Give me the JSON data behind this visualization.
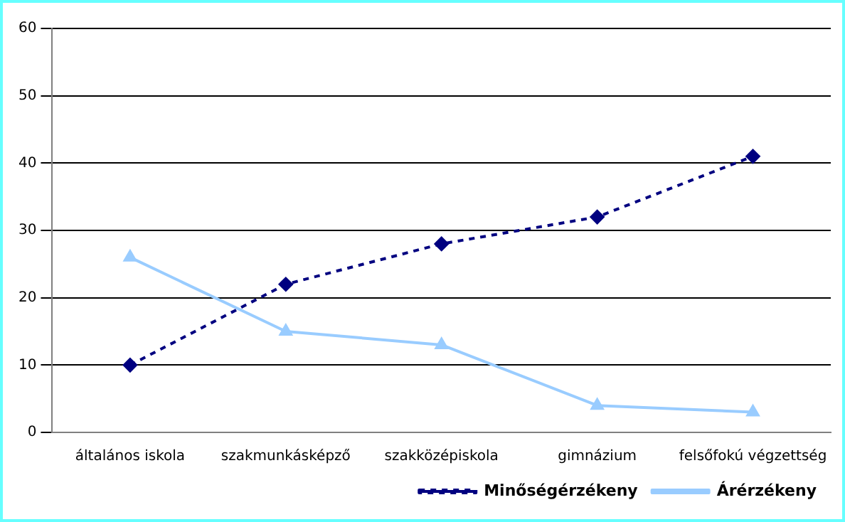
{
  "chart_data": {
    "type": "line",
    "categories": [
      "általános iskola",
      "szakmunkásképző",
      "szakközépiskola",
      "gimnázium",
      "felsőfokú végzettség"
    ],
    "series": [
      {
        "name": "Minőségérzékeny",
        "color": "#000080",
        "values": [
          10,
          22,
          28,
          32,
          41
        ],
        "marker": "diamond",
        "line_style": "dashed"
      },
      {
        "name": "Árérzékeny",
        "color": "#99ccff",
        "values": [
          26,
          15,
          13,
          4,
          3
        ],
        "marker": "triangle",
        "line_style": "solid"
      }
    ],
    "ylim": [
      0,
      60
    ],
    "yticks": [
      0,
      10,
      20,
      30,
      40,
      50,
      60
    ],
    "grid": "y",
    "legend": "bottom right"
  }
}
